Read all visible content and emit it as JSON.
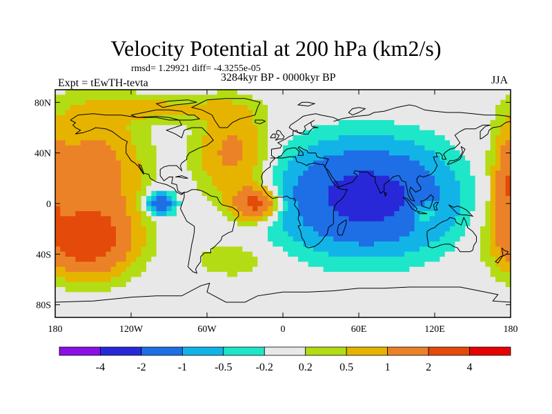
{
  "title": "Velocity Potential at 200 hPa (km2/s)",
  "stats": "rmsd= 1.29921 diff= -4.3255e-05",
  "subtitle": "3284kyr BP - 0000kyr BP",
  "experiment": "Expt = tEwTH-tevta",
  "season": "JJA",
  "chart_data": {
    "type": "filled-contour-map",
    "variable": "Velocity Potential at 200 hPa",
    "units": "km2/s",
    "projection": "cylindrical equidistant",
    "xlim": [
      -180,
      180
    ],
    "ylim": [
      -90,
      90
    ],
    "x_ticks": [
      {
        "value": -180,
        "label": "180"
      },
      {
        "value": -120,
        "label": "120W"
      },
      {
        "value": -60,
        "label": "60W"
      },
      {
        "value": 0,
        "label": "0"
      },
      {
        "value": 60,
        "label": "60E"
      },
      {
        "value": 120,
        "label": "120E"
      },
      {
        "value": 180,
        "label": "180"
      }
    ],
    "y_ticks": [
      {
        "value": 80,
        "label": "80N"
      },
      {
        "value": 40,
        "label": "40N"
      },
      {
        "value": 0,
        "label": "0"
      },
      {
        "value": -40,
        "label": "40S"
      },
      {
        "value": -80,
        "label": "80S"
      }
    ],
    "contour_levels": [
      -4,
      -2,
      -1,
      -0.5,
      -0.2,
      0.2,
      0.5,
      1,
      2,
      4
    ],
    "level_labels": [
      "-4",
      "-2",
      "-1",
      "-0.5",
      "-0.2",
      "0.2",
      "0.5",
      "1",
      "2",
      "4"
    ],
    "colors": [
      "#8a10e8",
      "#2828d8",
      "#1e6ee6",
      "#12b4e8",
      "#1ee6c8",
      "#e8e8e8",
      "#b4dc14",
      "#e6b400",
      "#eb8228",
      "#e44a0a",
      "#e60000"
    ],
    "field_centers": [
      {
        "lon": 66,
        "lat": 5,
        "amp": -2.6,
        "sx": 60,
        "sy": 38
      },
      {
        "lon": 110,
        "lat": -8,
        "amp": 1.0,
        "sx": 11,
        "sy": 9
      },
      {
        "lon": -155,
        "lat": -30,
        "amp": 2.6,
        "sx": 32,
        "sy": 24
      },
      {
        "lon": -150,
        "lat": 20,
        "amp": 1.5,
        "sx": 36,
        "sy": 50
      },
      {
        "lon": -40,
        "lat": 40,
        "amp": 1.2,
        "sx": 26,
        "sy": 34
      },
      {
        "lon": -22,
        "lat": 0,
        "amp": 2.4,
        "sx": 17,
        "sy": 12
      },
      {
        "lon": -97,
        "lat": 0,
        "amp": -1.7,
        "sx": 11,
        "sy": 9
      },
      {
        "lon": -95,
        "lat": 75,
        "amp": 0.6,
        "sx": 60,
        "sy": 10
      },
      {
        "lon": -40,
        "lat": -45,
        "amp": 0.5,
        "sx": 26,
        "sy": 12
      },
      {
        "lon": 178,
        "lat": 15,
        "amp": 1.4,
        "sx": 10,
        "sy": 38
      }
    ]
  }
}
